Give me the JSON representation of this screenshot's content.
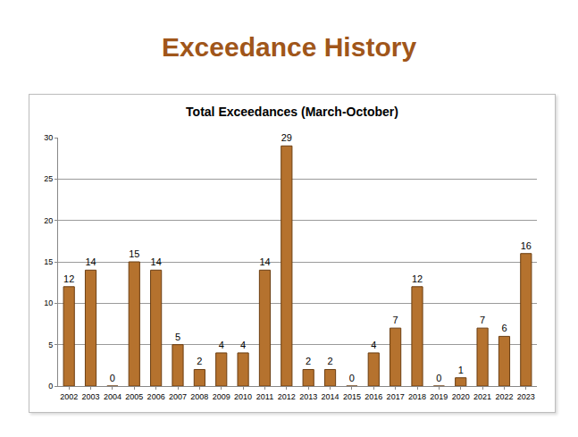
{
  "heading": "Exceedance History",
  "chart_data": {
    "type": "bar",
    "title": "Total Exceedances (March-October)",
    "categories": [
      "2002",
      "2003",
      "2004",
      "2005",
      "2006",
      "2007",
      "2008",
      "2009",
      "2010",
      "2011",
      "2012",
      "2013",
      "2014",
      "2015",
      "2016",
      "2017",
      "2018",
      "2019",
      "2020",
      "2021",
      "2022",
      "2023"
    ],
    "values": [
      12,
      14,
      0,
      15,
      14,
      5,
      2,
      4,
      4,
      14,
      29,
      2,
      2,
      0,
      4,
      7,
      12,
      0,
      1,
      7,
      6,
      16
    ],
    "color": "#b5722e",
    "ylim": [
      0,
      30
    ],
    "yticks": [
      0,
      5,
      10,
      15,
      20,
      25,
      30
    ],
    "grid": true,
    "data_labels": true
  }
}
